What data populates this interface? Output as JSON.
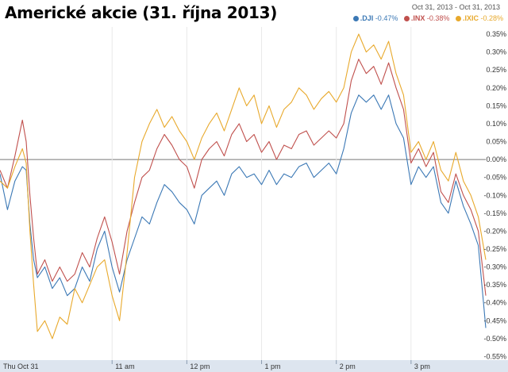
{
  "title": "Americké akcie (31. října 2013)",
  "date_range": {
    "start": "Oct 31, 2013",
    "separator": "-",
    "end": "Oct 31, 2013"
  },
  "legend": [
    {
      "symbol": ".DJI",
      "change": "-0.47%",
      "color": "#3b78b5"
    },
    {
      "symbol": ".INX",
      "change": "-0.38%",
      "color": "#c0504d"
    },
    {
      "symbol": ".IXIC",
      "change": "-0.28%",
      "color": "#e8a92c"
    }
  ],
  "chart_data": {
    "type": "line",
    "ylim": [
      -0.56,
      0.37
    ],
    "yticks": [
      0.35,
      0.3,
      0.25,
      0.2,
      0.15,
      0.1,
      0.05,
      0.0,
      -0.05,
      -0.1,
      -0.15,
      -0.2,
      -0.25,
      -0.3,
      -0.35,
      -0.4,
      -0.45,
      -0.5,
      -0.55
    ],
    "ytick_labels": [
      "0.35%",
      "0.30%",
      "0.25%",
      "0.20%",
      "0.15%",
      "0.10%",
      "0.05%",
      "0.00%",
      "-0.05%",
      "-0.10%",
      "-0.15%",
      "-0.20%",
      "-0.25%",
      "-0.30%",
      "-0.35%",
      "-0.40%",
      "-0.45%",
      "-0.50%",
      "-0.55%"
    ],
    "xlim": [
      9.5,
      16.0
    ],
    "xticks": [
      {
        "x": 9.5,
        "label": "Thu Oct 31"
      },
      {
        "x": 11,
        "label": "11 am"
      },
      {
        "x": 12,
        "label": "12 pm"
      },
      {
        "x": 13,
        "label": "1 pm"
      },
      {
        "x": 14,
        "label": "2 pm"
      },
      {
        "x": 15,
        "label": "3 pm"
      }
    ],
    "grid": true,
    "series": [
      {
        "name": ".DJI",
        "color": "#3b78b5",
        "points": [
          [
            9.5,
            -0.04
          ],
          [
            9.6,
            -0.14
          ],
          [
            9.7,
            -0.06
          ],
          [
            9.8,
            -0.02
          ],
          [
            9.85,
            -0.03
          ],
          [
            9.9,
            -0.18
          ],
          [
            9.95,
            -0.28
          ],
          [
            10.0,
            -0.33
          ],
          [
            10.1,
            -0.3
          ],
          [
            10.2,
            -0.36
          ],
          [
            10.3,
            -0.33
          ],
          [
            10.4,
            -0.38
          ],
          [
            10.5,
            -0.36
          ],
          [
            10.6,
            -0.3
          ],
          [
            10.7,
            -0.34
          ],
          [
            10.8,
            -0.25
          ],
          [
            10.9,
            -0.2
          ],
          [
            11.0,
            -0.3
          ],
          [
            11.1,
            -0.37
          ],
          [
            11.2,
            -0.28
          ],
          [
            11.3,
            -0.22
          ],
          [
            11.4,
            -0.16
          ],
          [
            11.5,
            -0.18
          ],
          [
            11.6,
            -0.12
          ],
          [
            11.7,
            -0.07
          ],
          [
            11.8,
            -0.09
          ],
          [
            11.9,
            -0.12
          ],
          [
            12.0,
            -0.14
          ],
          [
            12.1,
            -0.18
          ],
          [
            12.2,
            -0.1
          ],
          [
            12.3,
            -0.08
          ],
          [
            12.4,
            -0.06
          ],
          [
            12.5,
            -0.1
          ],
          [
            12.6,
            -0.04
          ],
          [
            12.7,
            -0.02
          ],
          [
            12.8,
            -0.05
          ],
          [
            12.9,
            -0.04
          ],
          [
            13.0,
            -0.07
          ],
          [
            13.1,
            -0.03
          ],
          [
            13.2,
            -0.07
          ],
          [
            13.3,
            -0.04
          ],
          [
            13.4,
            -0.05
          ],
          [
            13.5,
            -0.02
          ],
          [
            13.6,
            -0.01
          ],
          [
            13.7,
            -0.05
          ],
          [
            13.8,
            -0.03
          ],
          [
            13.9,
            -0.01
          ],
          [
            14.0,
            -0.04
          ],
          [
            14.1,
            0.03
          ],
          [
            14.2,
            0.13
          ],
          [
            14.3,
            0.18
          ],
          [
            14.4,
            0.16
          ],
          [
            14.5,
            0.18
          ],
          [
            14.6,
            0.14
          ],
          [
            14.7,
            0.18
          ],
          [
            14.8,
            0.1
          ],
          [
            14.9,
            0.06
          ],
          [
            15.0,
            -0.07
          ],
          [
            15.1,
            -0.02
          ],
          [
            15.2,
            -0.05
          ],
          [
            15.3,
            -0.02
          ],
          [
            15.4,
            -0.12
          ],
          [
            15.5,
            -0.15
          ],
          [
            15.6,
            -0.06
          ],
          [
            15.7,
            -0.13
          ],
          [
            15.8,
            -0.18
          ],
          [
            15.9,
            -0.24
          ],
          [
            16.0,
            -0.47
          ]
        ]
      },
      {
        "name": ".INX",
        "color": "#c0504d",
        "points": [
          [
            9.5,
            -0.03
          ],
          [
            9.6,
            -0.08
          ],
          [
            9.7,
            0.01
          ],
          [
            9.8,
            0.11
          ],
          [
            9.85,
            0.05
          ],
          [
            9.9,
            -0.1
          ],
          [
            9.95,
            -0.22
          ],
          [
            10.0,
            -0.32
          ],
          [
            10.1,
            -0.28
          ],
          [
            10.2,
            -0.34
          ],
          [
            10.3,
            -0.3
          ],
          [
            10.4,
            -0.34
          ],
          [
            10.5,
            -0.32
          ],
          [
            10.6,
            -0.26
          ],
          [
            10.7,
            -0.3
          ],
          [
            10.8,
            -0.22
          ],
          [
            10.9,
            -0.16
          ],
          [
            11.0,
            -0.23
          ],
          [
            11.1,
            -0.32
          ],
          [
            11.2,
            -0.2
          ],
          [
            11.3,
            -0.12
          ],
          [
            11.4,
            -0.05
          ],
          [
            11.5,
            -0.03
          ],
          [
            11.6,
            0.03
          ],
          [
            11.7,
            0.07
          ],
          [
            11.8,
            0.04
          ],
          [
            11.9,
            0.0
          ],
          [
            12.0,
            -0.02
          ],
          [
            12.1,
            -0.08
          ],
          [
            12.2,
            0.0
          ],
          [
            12.3,
            0.03
          ],
          [
            12.4,
            0.05
          ],
          [
            12.5,
            0.01
          ],
          [
            12.6,
            0.07
          ],
          [
            12.7,
            0.1
          ],
          [
            12.8,
            0.05
          ],
          [
            12.9,
            0.07
          ],
          [
            13.0,
            0.02
          ],
          [
            13.1,
            0.05
          ],
          [
            13.2,
            0.0
          ],
          [
            13.3,
            0.04
          ],
          [
            13.4,
            0.03
          ],
          [
            13.5,
            0.07
          ],
          [
            13.6,
            0.08
          ],
          [
            13.7,
            0.04
          ],
          [
            13.8,
            0.06
          ],
          [
            13.9,
            0.08
          ],
          [
            14.0,
            0.06
          ],
          [
            14.1,
            0.1
          ],
          [
            14.2,
            0.22
          ],
          [
            14.3,
            0.28
          ],
          [
            14.4,
            0.24
          ],
          [
            14.5,
            0.26
          ],
          [
            14.6,
            0.21
          ],
          [
            14.7,
            0.27
          ],
          [
            14.8,
            0.2
          ],
          [
            14.9,
            0.14
          ],
          [
            15.0,
            -0.01
          ],
          [
            15.1,
            0.03
          ],
          [
            15.2,
            -0.02
          ],
          [
            15.3,
            0.02
          ],
          [
            15.4,
            -0.09
          ],
          [
            15.5,
            -0.12
          ],
          [
            15.6,
            -0.04
          ],
          [
            15.7,
            -0.1
          ],
          [
            15.8,
            -0.14
          ],
          [
            15.9,
            -0.2
          ],
          [
            16.0,
            -0.38
          ]
        ]
      },
      {
        "name": ".IXIC",
        "color": "#e8a92c",
        "points": [
          [
            9.5,
            -0.06
          ],
          [
            9.6,
            -0.08
          ],
          [
            9.7,
            -0.02
          ],
          [
            9.8,
            0.03
          ],
          [
            9.85,
            -0.01
          ],
          [
            9.9,
            -0.2
          ],
          [
            9.95,
            -0.35
          ],
          [
            10.0,
            -0.48
          ],
          [
            10.1,
            -0.45
          ],
          [
            10.2,
            -0.5
          ],
          [
            10.3,
            -0.44
          ],
          [
            10.4,
            -0.46
          ],
          [
            10.5,
            -0.36
          ],
          [
            10.6,
            -0.4
          ],
          [
            10.7,
            -0.35
          ],
          [
            10.8,
            -0.3
          ],
          [
            10.9,
            -0.28
          ],
          [
            11.0,
            -0.38
          ],
          [
            11.1,
            -0.45
          ],
          [
            11.2,
            -0.26
          ],
          [
            11.3,
            -0.05
          ],
          [
            11.4,
            0.05
          ],
          [
            11.5,
            0.1
          ],
          [
            11.6,
            0.14
          ],
          [
            11.7,
            0.09
          ],
          [
            11.8,
            0.12
          ],
          [
            11.9,
            0.08
          ],
          [
            12.0,
            0.05
          ],
          [
            12.1,
            0.0
          ],
          [
            12.2,
            0.06
          ],
          [
            12.3,
            0.1
          ],
          [
            12.4,
            0.13
          ],
          [
            12.5,
            0.08
          ],
          [
            12.6,
            0.14
          ],
          [
            12.7,
            0.2
          ],
          [
            12.8,
            0.15
          ],
          [
            12.9,
            0.18
          ],
          [
            13.0,
            0.1
          ],
          [
            13.1,
            0.15
          ],
          [
            13.2,
            0.09
          ],
          [
            13.3,
            0.14
          ],
          [
            13.4,
            0.16
          ],
          [
            13.5,
            0.2
          ],
          [
            13.6,
            0.18
          ],
          [
            13.7,
            0.14
          ],
          [
            13.8,
            0.17
          ],
          [
            13.9,
            0.19
          ],
          [
            14.0,
            0.16
          ],
          [
            14.1,
            0.2
          ],
          [
            14.2,
            0.3
          ],
          [
            14.3,
            0.35
          ],
          [
            14.4,
            0.3
          ],
          [
            14.5,
            0.32
          ],
          [
            14.6,
            0.28
          ],
          [
            14.7,
            0.33
          ],
          [
            14.8,
            0.24
          ],
          [
            14.9,
            0.18
          ],
          [
            15.0,
            0.02
          ],
          [
            15.1,
            0.05
          ],
          [
            15.2,
            0.0
          ],
          [
            15.3,
            0.05
          ],
          [
            15.4,
            -0.03
          ],
          [
            15.5,
            -0.06
          ],
          [
            15.6,
            0.02
          ],
          [
            15.7,
            -0.06
          ],
          [
            15.8,
            -0.1
          ],
          [
            15.9,
            -0.16
          ],
          [
            16.0,
            -0.28
          ]
        ]
      }
    ]
  }
}
